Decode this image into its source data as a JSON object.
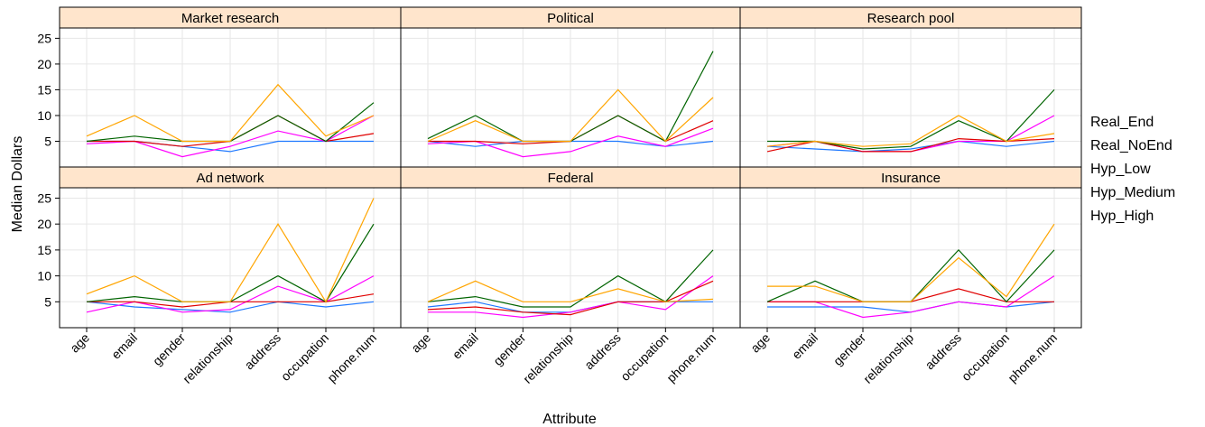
{
  "chart_data": {
    "type": "line",
    "xlabel": "Attribute",
    "ylabel": "Median Dollars",
    "categories": [
      "age",
      "email",
      "gender",
      "relationship",
      "address",
      "occupation",
      "phone.num"
    ],
    "ylim": [
      0,
      27
    ],
    "yticks": [
      5,
      10,
      15,
      20,
      25
    ],
    "grid": true,
    "legend": {
      "placement": "right",
      "entries": [
        "Real_End",
        "Real_NoEnd",
        "Hyp_Low",
        "Hyp_Medium",
        "Hyp_High"
      ]
    },
    "series_colors": [
      "#1e78ff",
      "#ff00ff",
      "#e00000",
      "#006400",
      "#ffa500"
    ],
    "panels": [
      {
        "title": "Market research",
        "series": [
          {
            "values": [
              5,
              5,
              4,
              3,
              5,
              5,
              5
            ]
          },
          {
            "values": [
              4.5,
              5,
              2,
              4,
              7,
              5,
              10
            ]
          },
          {
            "values": [
              5,
              5,
              4,
              5,
              10,
              5,
              6.5
            ]
          },
          {
            "values": [
              5,
              6,
              5,
              5,
              10,
              5,
              12.5
            ]
          },
          {
            "values": [
              6,
              10,
              5,
              5,
              16,
              6,
              10
            ]
          }
        ]
      },
      {
        "title": "Political",
        "series": [
          {
            "values": [
              5,
              4,
              5,
              5,
              5,
              4,
              5
            ]
          },
          {
            "values": [
              4.5,
              5,
              2,
              3,
              6,
              4,
              7.5
            ]
          },
          {
            "values": [
              5,
              5,
              4.5,
              5,
              10,
              5,
              9
            ]
          },
          {
            "values": [
              5.5,
              10,
              5,
              5,
              10,
              5,
              22.5
            ]
          },
          {
            "values": [
              5,
              9,
              5,
              5,
              15,
              5,
              13.5
            ]
          }
        ]
      },
      {
        "title": "Research pool",
        "series": [
          {
            "values": [
              4,
              3.5,
              3,
              3.5,
              5,
              4,
              5
            ]
          },
          {
            "values": [
              4,
              5,
              3,
              3,
              5,
              5,
              10
            ]
          },
          {
            "values": [
              3,
              5,
              3,
              3,
              5.5,
              5,
              5.5
            ]
          },
          {
            "values": [
              5,
              5,
              3.5,
              4,
              9,
              5,
              15
            ]
          },
          {
            "values": [
              4,
              5,
              4,
              4.5,
              10,
              5,
              6.5
            ]
          }
        ]
      },
      {
        "title": "Ad network",
        "series": [
          {
            "values": [
              5,
              4,
              3.5,
              3,
              5,
              4,
              5
            ]
          },
          {
            "values": [
              3,
              5,
              3,
              3.5,
              8,
              5,
              10
            ]
          },
          {
            "values": [
              5,
              5,
              4,
              5,
              5,
              5,
              6.5
            ]
          },
          {
            "values": [
              5,
              6,
              5,
              5,
              10,
              5,
              20
            ]
          },
          {
            "values": [
              6.5,
              10,
              5,
              5,
              20,
              5,
              25
            ]
          }
        ]
      },
      {
        "title": "Federal",
        "series": [
          {
            "values": [
              4,
              5,
              3,
              3,
              5,
              5,
              5
            ]
          },
          {
            "values": [
              3,
              3,
              2,
              3,
              5,
              3.5,
              10
            ]
          },
          {
            "values": [
              3.5,
              4,
              3,
              2.5,
              5,
              5,
              9
            ]
          },
          {
            "values": [
              5,
              6,
              4,
              4,
              10,
              5,
              15
            ]
          },
          {
            "values": [
              5,
              9,
              5,
              5,
              7.5,
              5,
              5.5
            ]
          }
        ]
      },
      {
        "title": "Insurance",
        "series": [
          {
            "values": [
              4,
              4,
              4,
              3,
              5,
              4,
              5
            ]
          },
          {
            "values": [
              5,
              5,
              2,
              3,
              5,
              4,
              10
            ]
          },
          {
            "values": [
              5,
              5,
              5,
              5,
              7.5,
              5,
              5
            ]
          },
          {
            "values": [
              5,
              9,
              5,
              5,
              15,
              5,
              15
            ]
          },
          {
            "values": [
              8,
              8,
              5,
              5,
              13.5,
              6,
              20
            ]
          }
        ]
      }
    ]
  }
}
